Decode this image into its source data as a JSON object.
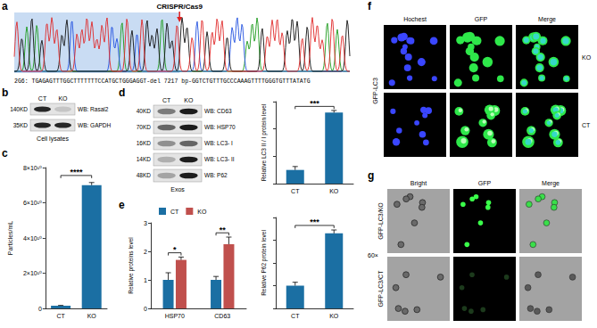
{
  "panels": {
    "a": {
      "letter": "a",
      "label": "CRISPR/Cas9",
      "sequence_name": "2G6:",
      "sequence_left": "TGAGAGTTTGGCTTTTTTTCCATGCTGGGAGGT",
      "deletion": "-del 7217 bp-",
      "sequence_right": "GGTCTGTTTGCCCAAAGTTTTGGGTGTTTATATG"
    },
    "b": {
      "letter": "b",
      "columns": [
        "CT",
        "KO"
      ],
      "blots": [
        {
          "size": "140KD",
          "label": "WB: Rasal2",
          "intensity": [
            0.9,
            0.15
          ]
        },
        {
          "size": "35KD",
          "label": "WB: GAPDH",
          "intensity": [
            0.9,
            0.9
          ]
        }
      ],
      "caption": "Cell lysates"
    },
    "d": {
      "letter": "d",
      "columns": [
        "CT",
        "KO"
      ],
      "blots": [
        {
          "size": "40KD",
          "label": "WB: CD63",
          "intensity": [
            0.5,
            0.95
          ]
        },
        {
          "size": "70KD",
          "label": "WB: HSP70",
          "intensity": [
            0.6,
            0.95
          ]
        },
        {
          "size": "16KD",
          "label": "WB: LC3- I",
          "intensity": [
            0.4,
            0.6
          ]
        },
        {
          "size": "14KD",
          "label": "WB: LC3- II",
          "intensity": [
            0.25,
            0.95
          ]
        },
        {
          "size": "48KD",
          "label": "WB: P62",
          "intensity": [
            0.3,
            0.95
          ]
        }
      ],
      "caption": "Exos"
    },
    "f": {
      "letter": "f",
      "side_label": "GFP-LC3",
      "columns": [
        "Hochest",
        "GFP",
        "Merge"
      ],
      "rows": [
        "KO",
        "CT"
      ]
    },
    "g": {
      "letter": "g",
      "columns": [
        "Bright",
        "GFP",
        "Merge"
      ],
      "rows": [
        "GFP-LC3/KO",
        "GFP-LC3/CT"
      ],
      "magnification": "60×"
    }
  },
  "chart_data": [
    {
      "letter": "c",
      "type": "bar",
      "y_label": "Particles/mL",
      "categories": [
        "CT",
        "KO"
      ],
      "values": [
        1500000000,
        70000000000
      ],
      "errors": [
        200000000,
        1500000000
      ],
      "color": "#1b6fa3",
      "ylim": [
        0,
        80000000000
      ],
      "yticks": [
        0,
        {
          "value": 20000000000,
          "label": "2×10¹⁰"
        },
        {
          "value": 40000000000,
          "label": "4×10¹⁰"
        },
        {
          "value": 60000000000,
          "label": "6×10¹⁰"
        },
        {
          "value": 80000000000,
          "label": "8×10¹⁰"
        }
      ],
      "grid": false,
      "significance": "****"
    },
    {
      "type": "bar",
      "y_label": "Relative LC3 II / I protein level",
      "categories": [
        "CT",
        "KO"
      ],
      "values": [
        1,
        5.2
      ],
      "errors": [
        0.25,
        0.15
      ],
      "color": "#1b6fa3",
      "ylim": [
        0,
        6
      ],
      "yticks": [
        0,
        2,
        4,
        6
      ],
      "tick_labels": "x",
      "grid": false,
      "significance": "***"
    },
    {
      "type": "bar",
      "y_label": "Relative P62 protein level",
      "categories": [
        "CT",
        "KO"
      ],
      "values": [
        1,
        3.3
      ],
      "errors": [
        0.15,
        0.15
      ],
      "color": "#1b6fa3",
      "ylim": [
        0,
        4
      ],
      "yticks": [
        0,
        1,
        2,
        3,
        4
      ],
      "tick_labels": "x",
      "grid": false,
      "significance": "***"
    },
    {
      "letter": "e",
      "type": "bar",
      "y_label": "Relative proteins level",
      "categories": [
        "HSP70",
        "CD63"
      ],
      "series": [
        {
          "name": "CT",
          "color": "#1b6fa3",
          "values": [
            1,
            1
          ],
          "errors": [
            0.25,
            0.12
          ]
        },
        {
          "name": "KO",
          "color": "#c0504d",
          "values": [
            1.7,
            2.25
          ],
          "errors": [
            0.1,
            0.25
          ]
        }
      ],
      "ylim": [
        0,
        3
      ],
      "yticks": [
        0,
        1,
        2,
        3
      ],
      "legend": "upper left",
      "grid": false,
      "significance": [
        "*",
        "**"
      ]
    }
  ]
}
